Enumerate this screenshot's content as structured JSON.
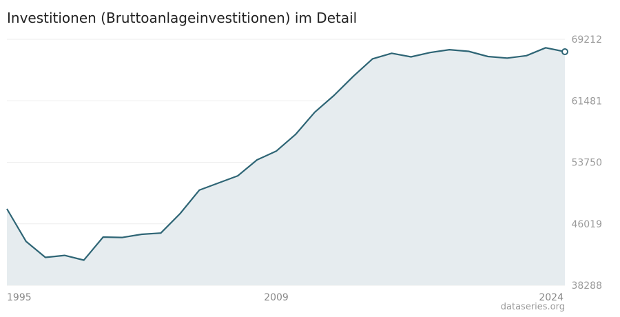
{
  "chart_data": {
    "type": "area",
    "title": "Investitionen (Bruttoanlageinvestitionen) im Detail",
    "xlabel": "",
    "ylabel": "",
    "x": [
      1995,
      1996,
      1997,
      1998,
      1999,
      2000,
      2001,
      2002,
      2003,
      2004,
      2005,
      2006,
      2007,
      2008,
      2009,
      2010,
      2011,
      2012,
      2013,
      2014,
      2015,
      2016,
      2017,
      2018,
      2019,
      2020,
      2021,
      2022,
      2023,
      2024
    ],
    "values": [
      47900,
      43800,
      41800,
      42050,
      41450,
      44350,
      44300,
      44700,
      44850,
      47300,
      50250,
      51150,
      52050,
      54050,
      55150,
      57250,
      60050,
      62150,
      64550,
      66750,
      67450,
      67000,
      67550,
      67900,
      67700,
      67050,
      66850,
      67150,
      68150,
      67650
    ],
    "ylim": [
      38288,
      69212
    ],
    "yticks": [
      "69212",
      "61481",
      "53750",
      "46019",
      "38288"
    ],
    "xticks": [
      "1995",
      "2009",
      "2024"
    ],
    "grid": true,
    "legend": "none",
    "colors": {
      "line": "#2e6575",
      "fill": "#e6ecef",
      "grid": "#eeeeee"
    }
  },
  "source": "dataseries.org"
}
